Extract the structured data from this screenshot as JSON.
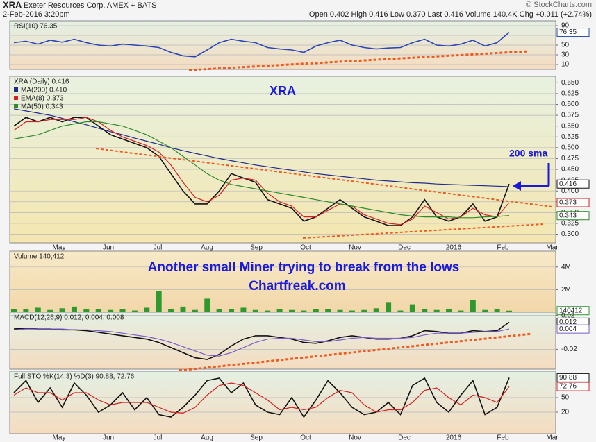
{
  "header": {
    "symbol": "XRA",
    "name": "Exeter Resources Corp. AMEX + BATS",
    "date": "2-Feb-2016 3:20pm",
    "quote": "Open 0.402 High 0.416 Low 0.370 Last 0.416 Volume 140.4K Chg +0.011 (+2.74%)",
    "credit": "© StockCharts.com"
  },
  "months": [
    "May",
    "Jun",
    "Jul",
    "Aug",
    "Sep",
    "Oct",
    "Nov",
    "Dec",
    "2016",
    "Feb",
    "Mar"
  ],
  "annotations": {
    "ticker": "XRA",
    "sma": "200 sma",
    "headline": "Another small Miner  trying to break from the lows",
    "site": "Chartfreak.com"
  },
  "chart_data": [
    {
      "type": "line",
      "title": "RSI(10) 76.35",
      "ylim": [
        0,
        100
      ],
      "yticks": [
        10,
        30,
        50,
        70,
        90
      ],
      "series": [
        {
          "color": "#2a45b8",
          "label_last": true,
          "values": [
            55,
            58,
            52,
            60,
            56,
            62,
            55,
            50,
            48,
            52,
            50,
            48,
            45,
            35,
            28,
            26,
            40,
            55,
            62,
            58,
            55,
            45,
            42,
            40,
            35,
            48,
            55,
            60,
            50,
            45,
            42,
            44,
            45,
            55,
            62,
            50,
            48,
            52,
            60,
            48,
            55,
            76.35
          ]
        }
      ]
    },
    {
      "type": "line",
      "title": "XRA (Daily) 0.416",
      "ylim": [
        0.28,
        0.665
      ],
      "yticks": [
        {
          "value": 0.3,
          "label": "0.300"
        },
        0.325,
        {
          "value": 0.35,
          "label": "0.350"
        },
        0.375,
        {
          "value": 0.4,
          "label": "0.400"
        },
        0.425,
        {
          "value": 0.45,
          "label": "0.450"
        },
        0.475,
        {
          "value": 0.5,
          "label": "0.500"
        },
        0.525,
        {
          "value": 0.55,
          "label": "0.550"
        },
        0.575,
        {
          "value": 0.6,
          "label": "0.600"
        },
        0.625,
        {
          "value": 0.65,
          "label": "0.650"
        }
      ],
      "series": [
        {
          "color": "#111111",
          "label_last": true,
          "values": [
            0.55,
            0.57,
            0.56,
            0.57,
            0.56,
            0.57,
            0.57,
            0.55,
            0.53,
            0.52,
            0.51,
            0.5,
            0.48,
            0.44,
            0.4,
            0.37,
            0.37,
            0.4,
            0.44,
            0.43,
            0.42,
            0.38,
            0.37,
            0.36,
            0.33,
            0.34,
            0.36,
            0.38,
            0.36,
            0.34,
            0.33,
            0.32,
            0.32,
            0.34,
            0.38,
            0.34,
            0.33,
            0.34,
            0.37,
            0.33,
            0.34,
            0.416
          ]
        },
        {
          "name": "MA(200) 0.410",
          "color": "#1f2a8c",
          "values": [
            0.59,
            0.585,
            0.58,
            0.575,
            0.568,
            0.56,
            0.553,
            0.545,
            0.537,
            0.53,
            0.522,
            0.515,
            0.508,
            0.5,
            0.493,
            0.487,
            0.481,
            0.475,
            0.47,
            0.465,
            0.46,
            0.456,
            0.452,
            0.448,
            0.444,
            0.44,
            0.437,
            0.434,
            0.431,
            0.428,
            0.425,
            0.423,
            0.421,
            0.419,
            0.418,
            0.416,
            0.415,
            0.414,
            0.413,
            0.412,
            0.411,
            0.41
          ]
        },
        {
          "name": "EMA(8) 0.373",
          "color": "#d42020",
          "label_last": true,
          "values": [
            0.54,
            0.56,
            0.56,
            0.565,
            0.565,
            0.565,
            0.57,
            0.56,
            0.54,
            0.525,
            0.515,
            0.505,
            0.49,
            0.46,
            0.42,
            0.385,
            0.375,
            0.39,
            0.425,
            0.43,
            0.425,
            0.395,
            0.375,
            0.365,
            0.34,
            0.34,
            0.355,
            0.37,
            0.365,
            0.345,
            0.335,
            0.325,
            0.322,
            0.335,
            0.365,
            0.35,
            0.335,
            0.34,
            0.36,
            0.345,
            0.34,
            0.373
          ]
        },
        {
          "name": "MA(50) 0.343",
          "color": "#2d8a2d",
          "label_last": true,
          "values": [
            0.52,
            0.525,
            0.53,
            0.54,
            0.55,
            0.555,
            0.56,
            0.56,
            0.555,
            0.55,
            0.54,
            0.53,
            0.515,
            0.5,
            0.48,
            0.46,
            0.44,
            0.425,
            0.415,
            0.41,
            0.405,
            0.4,
            0.395,
            0.39,
            0.385,
            0.38,
            0.375,
            0.37,
            0.365,
            0.36,
            0.355,
            0.35,
            0.345,
            0.342,
            0.34,
            0.34,
            0.34,
            0.338,
            0.338,
            0.34,
            0.341,
            0.343
          ]
        }
      ]
    },
    {
      "type": "bar",
      "title": "Volume 140,412",
      "ylim": [
        0,
        5400000
      ],
      "yticks": [
        {
          "value": 2000000,
          "label": "2M"
        },
        {
          "value": 4000000,
          "label": "4M"
        }
      ],
      "series": [
        {
          "color": "#2e9a2e",
          "label_last": true,
          "values": [
            300000,
            250000,
            400000,
            200000,
            350000,
            500000,
            300000,
            250000,
            200000,
            300000,
            150000,
            400000,
            1900000,
            300000,
            500000,
            200000,
            1200000,
            300000,
            250000,
            400000,
            200000,
            150000,
            300000,
            200000,
            150000,
            250000,
            300000,
            200000,
            150000,
            200000,
            350000,
            900000,
            150000,
            700000,
            300000,
            200000,
            250000,
            150000,
            1100000,
            200000,
            300000,
            140412
          ]
        }
      ]
    },
    {
      "type": "line",
      "title": "MACD(12,26,9) 0.012, 0.004, 0.008",
      "ylim": [
        -0.0435,
        0.0238
      ],
      "yticks": [
        -0.02,
        0.02
      ],
      "series": [
        {
          "color": "#111111",
          "label_last": true,
          "values": [
            0.004,
            0.005,
            0.004,
            0.004,
            0.003,
            0.003,
            0.002,
            0,
            -0.002,
            -0.004,
            -0.006,
            -0.008,
            -0.012,
            -0.018,
            -0.024,
            -0.03,
            -0.032,
            -0.026,
            -0.016,
            -0.008,
            -0.004,
            -0.004,
            -0.006,
            -0.008,
            -0.012,
            -0.013,
            -0.01,
            -0.006,
            -0.004,
            -0.006,
            -0.008,
            -0.008,
            -0.007,
            -0.004,
            0.002,
            0.001,
            -0.001,
            -0.001,
            0.002,
            0.001,
            0.002,
            0.012
          ]
        },
        {
          "color": "#7a5cc8",
          "label_last": true,
          "values": [
            0.003,
            0.004,
            0.004,
            0.004,
            0.004,
            0.003,
            0.003,
            0.002,
            0.001,
            -0.001,
            -0.003,
            -0.005,
            -0.008,
            -0.012,
            -0.017,
            -0.022,
            -0.027,
            -0.028,
            -0.024,
            -0.018,
            -0.012,
            -0.008,
            -0.007,
            -0.007,
            -0.009,
            -0.011,
            -0.011,
            -0.009,
            -0.007,
            -0.006,
            -0.007,
            -0.007,
            -0.007,
            -0.006,
            -0.003,
            -0.001,
            -0.001,
            -0.001,
            0,
            0.001,
            0.001,
            0.004
          ]
        }
      ]
    },
    {
      "type": "line",
      "title": "Full STO %K(14,3) %D(3) 90.88, 72.76",
      "ylim": [
        -24.3,
        104.3
      ],
      "yticks": [
        20,
        50
      ],
      "series": [
        {
          "color": "#111111",
          "label_last": true,
          "values": [
            60,
            85,
            40,
            70,
            30,
            80,
            55,
            20,
            35,
            60,
            25,
            50,
            15,
            10,
            30,
            55,
            85,
            90,
            60,
            80,
            35,
            20,
            15,
            50,
            10,
            45,
            85,
            60,
            30,
            15,
            20,
            40,
            15,
            75,
            90,
            40,
            20,
            55,
            85,
            15,
            30,
            90.88
          ]
        },
        {
          "color": "#d42020",
          "label_last": true,
          "values": [
            55,
            70,
            60,
            60,
            45,
            60,
            60,
            45,
            35,
            40,
            40,
            40,
            30,
            20,
            18,
            30,
            55,
            75,
            80,
            75,
            60,
            45,
            25,
            30,
            25,
            30,
            50,
            65,
            60,
            35,
            20,
            25,
            25,
            40,
            65,
            70,
            50,
            35,
            55,
            50,
            40,
            72.76
          ]
        }
      ]
    }
  ]
}
